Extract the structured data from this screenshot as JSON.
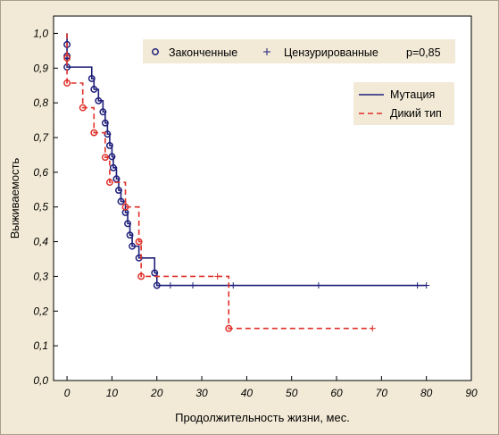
{
  "chart_data": {
    "type": "line",
    "subtype": "kaplan-meier step",
    "xlabel": "Продолжительность жизни, мес.",
    "ylabel": "Выживаемость",
    "xlim": [
      -3,
      90
    ],
    "ylim": [
      0,
      1.05
    ],
    "x_ticks": [
      0,
      10,
      20,
      30,
      40,
      50,
      60,
      70,
      80,
      90
    ],
    "y_ticks": [
      "0,0",
      "0,1",
      "0,2",
      "0,3",
      "0,4",
      "0,5",
      "0,6",
      "0,7",
      "0,8",
      "0,9",
      "1,0"
    ],
    "y_tick_values": [
      0,
      0.1,
      0.2,
      0.3,
      0.4,
      0.5,
      0.6,
      0.7,
      0.8,
      0.9,
      1.0
    ],
    "grid": false,
    "marker_legend": {
      "completed_label": "Законченные",
      "censored_label": "Цензурированные",
      "p_value": "p=0,85",
      "placement": "top"
    },
    "series_legend_placement": "right",
    "series": [
      {
        "name": "Мутация",
        "color": "#1f1f7a",
        "style": "solid",
        "steps": [
          [
            0,
            1.0
          ],
          [
            0,
            0.903
          ],
          [
            5.5,
            0.87
          ],
          [
            6,
            0.839
          ],
          [
            7,
            0.806
          ],
          [
            8,
            0.774
          ],
          [
            8.5,
            0.742
          ],
          [
            9,
            0.71
          ],
          [
            9.5,
            0.677
          ],
          [
            10,
            0.645
          ],
          [
            10.3,
            0.613
          ],
          [
            11,
            0.581
          ],
          [
            11.5,
            0.548
          ],
          [
            12,
            0.516
          ],
          [
            13,
            0.484
          ],
          [
            13.5,
            0.452
          ],
          [
            14,
            0.419
          ],
          [
            14.5,
            0.387
          ],
          [
            16,
            0.353
          ],
          [
            19.5,
            0.31
          ],
          [
            20,
            0.274
          ],
          [
            80,
            0.274
          ]
        ],
        "events": [
          [
            0,
            0.968
          ],
          [
            0,
            0.935
          ],
          [
            0,
            0.903
          ],
          [
            5.5,
            0.87
          ],
          [
            6,
            0.839
          ],
          [
            7,
            0.806
          ],
          [
            8,
            0.774
          ],
          [
            8.5,
            0.742
          ],
          [
            9,
            0.71
          ],
          [
            9.5,
            0.677
          ],
          [
            10,
            0.645
          ],
          [
            10.3,
            0.613
          ],
          [
            11,
            0.581
          ],
          [
            11.5,
            0.548
          ],
          [
            12,
            0.516
          ],
          [
            13,
            0.484
          ],
          [
            13.5,
            0.452
          ],
          [
            14,
            0.419
          ],
          [
            14.5,
            0.387
          ],
          [
            16,
            0.353
          ],
          [
            19.5,
            0.31
          ],
          [
            20,
            0.274
          ]
        ],
        "censored": [
          [
            23,
            0.274
          ],
          [
            28,
            0.274
          ],
          [
            37,
            0.274
          ],
          [
            56,
            0.274
          ],
          [
            78,
            0.274
          ],
          [
            80,
            0.274
          ]
        ]
      },
      {
        "name": "Дикий тип",
        "color": "#e0302a",
        "style": "dashed",
        "steps": [
          [
            0,
            1.0
          ],
          [
            0,
            0.857
          ],
          [
            3.5,
            0.786
          ],
          [
            6,
            0.714
          ],
          [
            8.5,
            0.643
          ],
          [
            9.5,
            0.571
          ],
          [
            13,
            0.5
          ],
          [
            16,
            0.4
          ],
          [
            16.5,
            0.3
          ],
          [
            36,
            0.15
          ],
          [
            68,
            0.15
          ]
        ],
        "events": [
          [
            0,
            0.929
          ],
          [
            0,
            0.857
          ],
          [
            3.5,
            0.786
          ],
          [
            6,
            0.714
          ],
          [
            8.5,
            0.643
          ],
          [
            9.5,
            0.571
          ],
          [
            13,
            0.5
          ],
          [
            16,
            0.4
          ],
          [
            16.5,
            0.3
          ],
          [
            36,
            0.15
          ]
        ],
        "censored": [
          [
            33.5,
            0.3
          ],
          [
            68,
            0.15
          ]
        ]
      }
    ]
  }
}
